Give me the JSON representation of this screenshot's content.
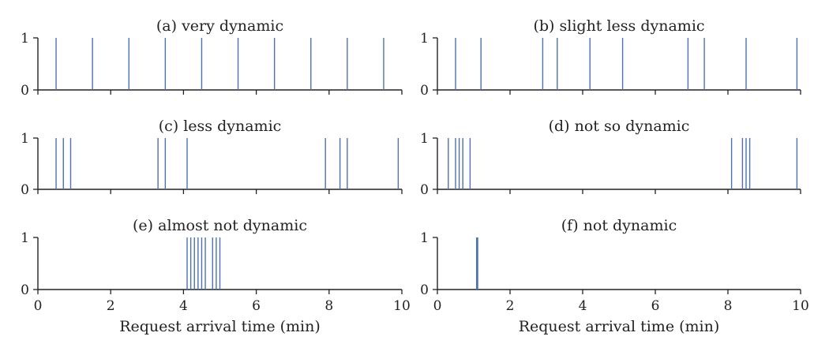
{
  "chart_data": [
    {
      "type": "spike",
      "title": "(a) very dynamic",
      "xlabel": "",
      "xlim": [
        0,
        10
      ],
      "ylim": [
        0,
        1
      ],
      "yticks": [
        "0",
        "1"
      ],
      "xticks": [
        "0",
        "2",
        "4",
        "6",
        "8",
        "10"
      ],
      "show_xtick_labels": false,
      "color": "#4c72b0",
      "x": [
        0.5,
        1.5,
        2.5,
        3.5,
        4.5,
        5.5,
        6.5,
        7.5,
        8.5,
        9.5
      ]
    },
    {
      "type": "spike",
      "title": "(b) slight less dynamic",
      "xlabel": "",
      "xlim": [
        0,
        10
      ],
      "ylim": [
        0,
        1
      ],
      "yticks": [
        "0",
        "1"
      ],
      "xticks": [
        "0",
        "2",
        "4",
        "6",
        "8",
        "10"
      ],
      "show_xtick_labels": false,
      "color": "#4c72b0",
      "x": [
        0.5,
        1.2,
        2.9,
        3.3,
        4.2,
        5.1,
        6.9,
        7.35,
        8.5,
        9.9
      ]
    },
    {
      "type": "spike",
      "title": "(c) less dynamic",
      "xlabel": "",
      "xlim": [
        0,
        10
      ],
      "ylim": [
        0,
        1
      ],
      "yticks": [
        "0",
        "1"
      ],
      "xticks": [
        "0",
        "2",
        "4",
        "6",
        "8",
        "10"
      ],
      "show_xtick_labels": false,
      "color": "#4c72b0",
      "x": [
        0.5,
        0.7,
        0.9,
        3.3,
        3.5,
        4.1,
        7.9,
        8.3,
        8.5,
        9.9
      ]
    },
    {
      "type": "spike",
      "title": "(d) not so dynamic",
      "xlabel": "",
      "xlim": [
        0,
        10
      ],
      "ylim": [
        0,
        1
      ],
      "yticks": [
        "0",
        "1"
      ],
      "xticks": [
        "0",
        "2",
        "4",
        "6",
        "8",
        "10"
      ],
      "show_xtick_labels": false,
      "color": "#4c72b0",
      "x": [
        0.3,
        0.5,
        0.6,
        0.7,
        0.9,
        8.1,
        8.4,
        8.5,
        8.6,
        9.9
      ]
    },
    {
      "type": "spike",
      "title": "(e) almost not dynamic",
      "xlabel": "Request arrival time (min)",
      "xlim": [
        0,
        10
      ],
      "ylim": [
        0,
        1
      ],
      "yticks": [
        "0",
        "1"
      ],
      "xticks": [
        "0",
        "2",
        "4",
        "6",
        "8",
        "10"
      ],
      "show_xtick_labels": true,
      "color": "#4c72b0",
      "x": [
        4.1,
        4.2,
        4.3,
        4.4,
        4.5,
        4.6,
        4.8,
        4.9,
        5.0
      ]
    },
    {
      "type": "spike",
      "title": "(f) not dynamic",
      "xlabel": "Request arrival time (min)",
      "xlim": [
        0,
        10
      ],
      "ylim": [
        0,
        1
      ],
      "yticks": [
        "0",
        "1"
      ],
      "xticks": [
        "0",
        "2",
        "4",
        "6",
        "8",
        "10"
      ],
      "show_xtick_labels": true,
      "color": "#4c72b0",
      "x": [
        1.08,
        1.09,
        1.1,
        1.11
      ]
    }
  ]
}
